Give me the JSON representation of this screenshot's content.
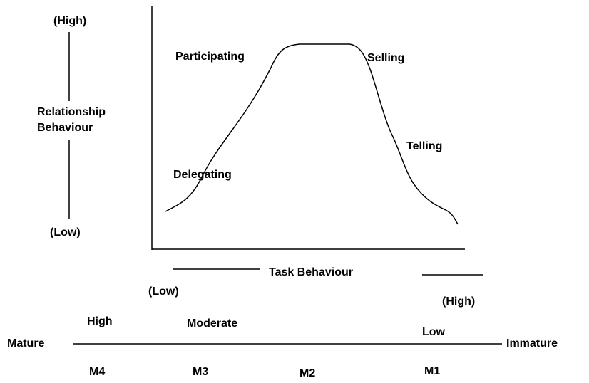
{
  "y_axis": {
    "high": "(High)",
    "label_line1": "Relationship",
    "label_line2": "Behaviour",
    "low": "(Low)"
  },
  "curve_labels": {
    "participating": "Participating",
    "selling": "Selling",
    "telling": "Telling",
    "delegating": "Delegating"
  },
  "x_axis": {
    "label": "Task Behaviour",
    "low": "(Low)",
    "high": "(High)"
  },
  "maturity": {
    "left": "Mature",
    "right": "Immature",
    "levels": [
      "High",
      "Moderate",
      "Low"
    ],
    "stages": [
      "M4",
      "M3",
      "M2",
      "M1"
    ]
  }
}
